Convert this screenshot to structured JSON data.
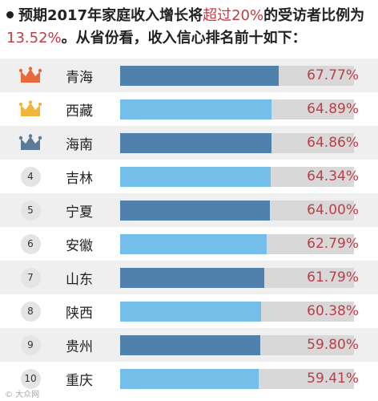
{
  "header": {
    "part1": "预期2017年家庭收入增长将",
    "highlight1": "超过20%",
    "part2": "的受访者比例为",
    "highlight2": "13.52%",
    "part3": "。从省份看，收入信心排名前十如下："
  },
  "chart_data": {
    "type": "bar",
    "title": "",
    "xlim": [
      0,
      100
    ],
    "categories": [
      "青海",
      "西藏",
      "海南",
      "吉林",
      "宁夏",
      "安徽",
      "山东",
      "陕西",
      "贵州",
      "重庆"
    ],
    "ranks": [
      "",
      "",
      "",
      "4",
      "5",
      "6",
      "7",
      "8",
      "9",
      "10"
    ],
    "rank_icons": [
      "crown-icon-orange",
      "crown-icon-gold",
      "crown-icon-blue",
      "",
      "",
      "",
      "",
      "",
      "",
      ""
    ],
    "values": [
      67.77,
      64.89,
      64.86,
      64.34,
      64.0,
      62.79,
      61.79,
      60.38,
      59.8,
      59.41
    ],
    "labels": [
      "67.77%",
      "64.89%",
      "64.86%",
      "64.34%",
      "64.00%",
      "62.79%",
      "61.79%",
      "60.38%",
      "59.80%",
      "59.41%"
    ],
    "bar_colors": [
      "#5081ad",
      "#74bfea"
    ],
    "crown_colors": [
      "#e86a3c",
      "#f0b53a",
      "#5a7b9a"
    ]
  },
  "watermark": "© 大众网"
}
